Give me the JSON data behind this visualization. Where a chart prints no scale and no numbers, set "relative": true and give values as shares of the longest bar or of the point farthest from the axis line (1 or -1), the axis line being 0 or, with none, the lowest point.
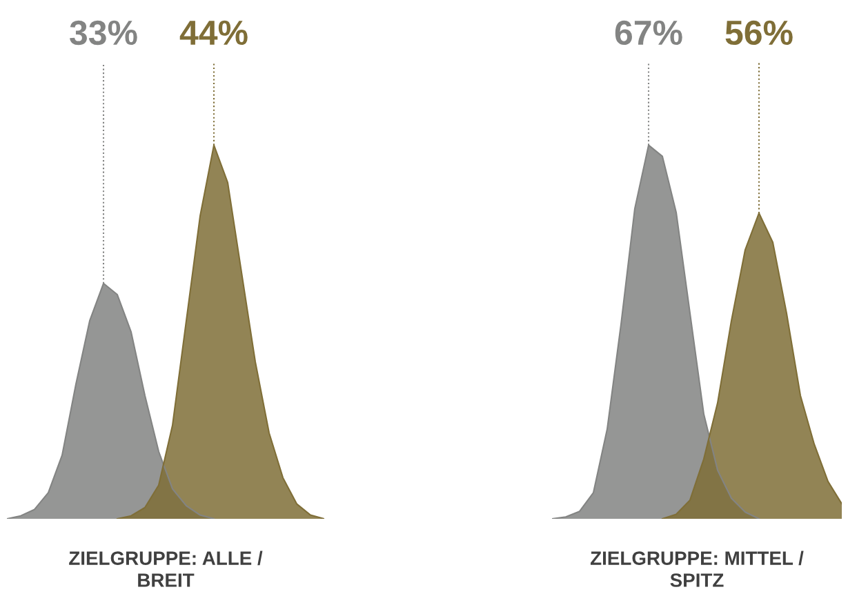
{
  "chart_data": [
    {
      "type": "area",
      "relative": true,
      "xlabel": "ZIELGRUPPE: ALLE / BREIT",
      "annotations": [
        "33%",
        "44%"
      ],
      "categories": [
        null,
        null,
        null,
        null,
        null,
        null,
        null,
        null,
        null,
        null,
        null,
        null,
        null,
        null,
        null,
        null,
        null,
        null,
        null,
        null,
        null,
        null,
        null,
        null
      ],
      "series": [
        {
          "color": "#838483",
          "values": [
            0,
            0.008,
            0.025,
            0.07,
            0.17,
            0.36,
            0.53,
            0.63,
            0.6,
            0.5,
            0.33,
            0.18,
            0.08,
            0.035,
            0.01,
            0,
            null,
            null,
            null,
            null,
            null,
            null,
            null,
            null
          ]
        },
        {
          "color": "#7f6e37",
          "values": [
            null,
            null,
            null,
            null,
            null,
            null,
            null,
            null,
            0,
            0.008,
            0.03,
            0.09,
            0.25,
            0.53,
            0.81,
            1,
            0.9,
            0.66,
            0.42,
            0.23,
            0.11,
            0.04,
            0.01,
            0
          ]
        }
      ]
    },
    {
      "type": "area",
      "relative": true,
      "xlabel": "ZIELGRUPPE: MITTEL / SPITZ",
      "annotations": [
        "67%",
        "56%"
      ],
      "categories": [
        null,
        null,
        null,
        null,
        null,
        null,
        null,
        null,
        null,
        null,
        null,
        null,
        null,
        null,
        null,
        null,
        null,
        null,
        null,
        null,
        null,
        null
      ],
      "series": [
        {
          "color": "#838483",
          "values": [
            0,
            0.005,
            0.02,
            0.07,
            0.24,
            0.52,
            0.83,
            1,
            0.97,
            0.82,
            0.55,
            0.28,
            0.13,
            0.055,
            0.018,
            0,
            null,
            null,
            null,
            null,
            null,
            null
          ]
        },
        {
          "color": "#7f6e37",
          "values": [
            null,
            null,
            null,
            null,
            null,
            null,
            null,
            null,
            0,
            0.012,
            0.05,
            0.16,
            0.31,
            0.53,
            0.72,
            0.818,
            0.74,
            0.55,
            0.33,
            0.2,
            0.1,
            0.04
          ]
        }
      ]
    }
  ]
}
